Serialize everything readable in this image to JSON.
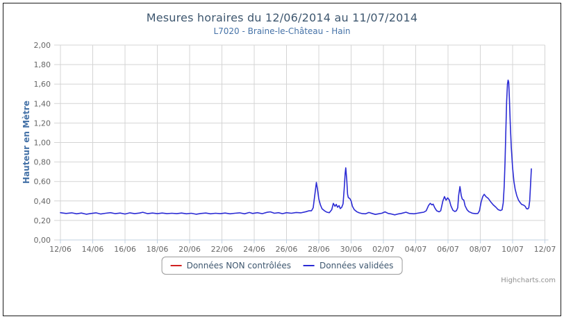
{
  "credit": "Highcharts.com",
  "chart_data": {
    "type": "line",
    "title": "Mesures horaires du 12/06/2014 au 11/07/2014",
    "subtitle": "L7020 - Braine-le-Château - Hain",
    "ylabel": "Hauteur en Mètre",
    "xlabel": "",
    "ylim": [
      0,
      2
    ],
    "ytick_values": [
      0,
      0.2,
      0.4,
      0.6,
      0.8,
      1.0,
      1.2,
      1.4,
      1.6,
      1.8,
      2.0
    ],
    "ytick_labels": [
      "0,00",
      "0,20",
      "0,40",
      "0,60",
      "0,80",
      "1,00",
      "1,20",
      "1,40",
      "1,60",
      "1,80",
      "2,00"
    ],
    "x_range_days": [
      0,
      30
    ],
    "xtick_days": [
      0,
      2,
      4,
      6,
      8,
      10,
      12,
      14,
      16,
      18,
      20,
      22,
      24,
      26,
      28,
      30
    ],
    "xtick_labels": [
      "12/06",
      "14/06",
      "16/06",
      "18/06",
      "20/06",
      "22/06",
      "24/06",
      "26/06",
      "28/06",
      "30/06",
      "02/07",
      "04/07",
      "06/07",
      "08/07",
      "10/07",
      "12/07"
    ],
    "grid": true,
    "legend_position": "bottom",
    "colors": {
      "title": "#3E576F",
      "subtitle": "#4572A7",
      "axis_title": "#4572A7",
      "tick_label": "#666666",
      "grid": "#D4D4D4",
      "axis_line": "#C0D0E0",
      "legend_border": "#999999",
      "legend_text": "#3E576F",
      "credit": "#909090",
      "frame_border": "#1a1a1a",
      "series_non_controlees": "#D02020",
      "series_validees": "#2A2AD4"
    },
    "series": [
      {
        "name": "Données NON contrôlées",
        "color": "#D02020",
        "points": []
      },
      {
        "name": "Données validées",
        "color": "#2A2AD4",
        "points": [
          [
            0,
            0.28
          ],
          [
            0.35,
            0.272
          ],
          [
            0.7,
            0.278
          ],
          [
            1.0,
            0.268
          ],
          [
            1.3,
            0.276
          ],
          [
            1.6,
            0.264
          ],
          [
            1.9,
            0.272
          ],
          [
            2.2,
            0.278
          ],
          [
            2.5,
            0.266
          ],
          [
            2.8,
            0.274
          ],
          [
            3.1,
            0.28
          ],
          [
            3.4,
            0.27
          ],
          [
            3.7,
            0.276
          ],
          [
            4.0,
            0.266
          ],
          [
            4.3,
            0.278
          ],
          [
            4.6,
            0.27
          ],
          [
            4.9,
            0.276
          ],
          [
            5.1,
            0.284
          ],
          [
            5.4,
            0.27
          ],
          [
            5.7,
            0.276
          ],
          [
            6.0,
            0.27
          ],
          [
            6.3,
            0.276
          ],
          [
            6.6,
            0.27
          ],
          [
            6.9,
            0.274
          ],
          [
            7.2,
            0.27
          ],
          [
            7.5,
            0.276
          ],
          [
            7.8,
            0.268
          ],
          [
            8.1,
            0.274
          ],
          [
            8.4,
            0.264
          ],
          [
            8.7,
            0.272
          ],
          [
            9.0,
            0.276
          ],
          [
            9.3,
            0.268
          ],
          [
            9.6,
            0.274
          ],
          [
            9.9,
            0.27
          ],
          [
            10.2,
            0.276
          ],
          [
            10.5,
            0.268
          ],
          [
            10.8,
            0.274
          ],
          [
            11.1,
            0.278
          ],
          [
            11.4,
            0.268
          ],
          [
            11.7,
            0.282
          ],
          [
            11.9,
            0.272
          ],
          [
            12.2,
            0.28
          ],
          [
            12.5,
            0.27
          ],
          [
            12.8,
            0.284
          ],
          [
            13.0,
            0.288
          ],
          [
            13.25,
            0.274
          ],
          [
            13.5,
            0.28
          ],
          [
            13.75,
            0.27
          ],
          [
            14.0,
            0.28
          ],
          [
            14.3,
            0.274
          ],
          [
            14.6,
            0.282
          ],
          [
            14.9,
            0.278
          ],
          [
            15.2,
            0.29
          ],
          [
            15.4,
            0.3
          ],
          [
            15.55,
            0.3
          ],
          [
            15.65,
            0.33
          ],
          [
            15.75,
            0.46
          ],
          [
            15.85,
            0.59
          ],
          [
            15.92,
            0.52
          ],
          [
            16.0,
            0.42
          ],
          [
            16.1,
            0.36
          ],
          [
            16.2,
            0.32
          ],
          [
            16.35,
            0.3
          ],
          [
            16.5,
            0.285
          ],
          [
            16.65,
            0.28
          ],
          [
            16.8,
            0.31
          ],
          [
            16.9,
            0.375
          ],
          [
            17.0,
            0.345
          ],
          [
            17.08,
            0.365
          ],
          [
            17.16,
            0.335
          ],
          [
            17.25,
            0.352
          ],
          [
            17.33,
            0.322
          ],
          [
            17.42,
            0.335
          ],
          [
            17.5,
            0.37
          ],
          [
            17.57,
            0.52
          ],
          [
            17.63,
            0.68
          ],
          [
            17.67,
            0.74
          ],
          [
            17.73,
            0.62
          ],
          [
            17.78,
            0.47
          ],
          [
            17.83,
            0.435
          ],
          [
            17.92,
            0.425
          ],
          [
            18.0,
            0.4
          ],
          [
            18.08,
            0.345
          ],
          [
            18.2,
            0.31
          ],
          [
            18.35,
            0.29
          ],
          [
            18.5,
            0.278
          ],
          [
            18.7,
            0.27
          ],
          [
            18.9,
            0.268
          ],
          [
            19.1,
            0.282
          ],
          [
            19.3,
            0.272
          ],
          [
            19.5,
            0.262
          ],
          [
            19.7,
            0.268
          ],
          [
            19.9,
            0.274
          ],
          [
            20.1,
            0.288
          ],
          [
            20.3,
            0.272
          ],
          [
            20.5,
            0.266
          ],
          [
            20.7,
            0.258
          ],
          [
            20.9,
            0.266
          ],
          [
            21.1,
            0.272
          ],
          [
            21.4,
            0.285
          ],
          [
            21.6,
            0.272
          ],
          [
            21.9,
            0.268
          ],
          [
            22.1,
            0.274
          ],
          [
            22.3,
            0.28
          ],
          [
            22.5,
            0.285
          ],
          [
            22.65,
            0.3
          ],
          [
            22.8,
            0.355
          ],
          [
            22.9,
            0.376
          ],
          [
            23.0,
            0.36
          ],
          [
            23.08,
            0.368
          ],
          [
            23.18,
            0.33
          ],
          [
            23.3,
            0.3
          ],
          [
            23.45,
            0.288
          ],
          [
            23.55,
            0.3
          ],
          [
            23.68,
            0.4
          ],
          [
            23.78,
            0.445
          ],
          [
            23.88,
            0.408
          ],
          [
            23.98,
            0.432
          ],
          [
            24.08,
            0.41
          ],
          [
            24.18,
            0.35
          ],
          [
            24.3,
            0.305
          ],
          [
            24.42,
            0.292
          ],
          [
            24.52,
            0.3
          ],
          [
            24.6,
            0.33
          ],
          [
            24.66,
            0.455
          ],
          [
            24.74,
            0.548
          ],
          [
            24.82,
            0.455
          ],
          [
            24.88,
            0.42
          ],
          [
            24.98,
            0.408
          ],
          [
            25.06,
            0.35
          ],
          [
            25.18,
            0.31
          ],
          [
            25.3,
            0.29
          ],
          [
            25.5,
            0.275
          ],
          [
            25.7,
            0.27
          ],
          [
            25.85,
            0.272
          ],
          [
            25.95,
            0.3
          ],
          [
            26.05,
            0.39
          ],
          [
            26.15,
            0.445
          ],
          [
            26.24,
            0.468
          ],
          [
            26.35,
            0.445
          ],
          [
            26.5,
            0.425
          ],
          [
            26.65,
            0.39
          ],
          [
            26.8,
            0.36
          ],
          [
            26.95,
            0.338
          ],
          [
            27.1,
            0.312
          ],
          [
            27.25,
            0.302
          ],
          [
            27.35,
            0.31
          ],
          [
            27.42,
            0.38
          ],
          [
            27.48,
            0.55
          ],
          [
            27.53,
            0.8
          ],
          [
            27.58,
            1.1
          ],
          [
            27.63,
            1.42
          ],
          [
            27.68,
            1.6
          ],
          [
            27.72,
            1.64
          ],
          [
            27.76,
            1.62
          ],
          [
            27.8,
            1.45
          ],
          [
            27.86,
            1.18
          ],
          [
            27.92,
            0.95
          ],
          [
            28.0,
            0.74
          ],
          [
            28.08,
            0.6
          ],
          [
            28.16,
            0.52
          ],
          [
            28.26,
            0.455
          ],
          [
            28.36,
            0.41
          ],
          [
            28.46,
            0.385
          ],
          [
            28.56,
            0.365
          ],
          [
            28.68,
            0.358
          ],
          [
            28.78,
            0.345
          ],
          [
            28.86,
            0.322
          ],
          [
            28.94,
            0.318
          ],
          [
            29.0,
            0.33
          ],
          [
            29.06,
            0.4
          ],
          [
            29.11,
            0.56
          ],
          [
            29.16,
            0.73
          ]
        ]
      }
    ]
  }
}
